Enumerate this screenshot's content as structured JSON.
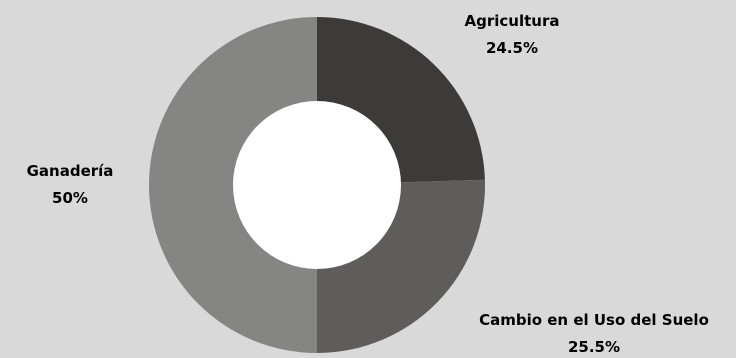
{
  "colors": {
    "background": "#d9d9d9",
    "hole": "#ffffff"
  },
  "chart_data": {
    "type": "pie",
    "donut": true,
    "start_angle_deg": 0,
    "direction": "clockwise",
    "slices": [
      {
        "label": "Agricultura",
        "value": 24.5,
        "display": "24.5%",
        "color": "#3c3b39"
      },
      {
        "label": "Cambio en el Uso del Suelo",
        "value": 25.5,
        "display": "25.5%",
        "color": "#5e5d5b"
      },
      {
        "label": "Ganadería",
        "value": 50,
        "display": "50%",
        "color": "#858583"
      }
    ]
  }
}
